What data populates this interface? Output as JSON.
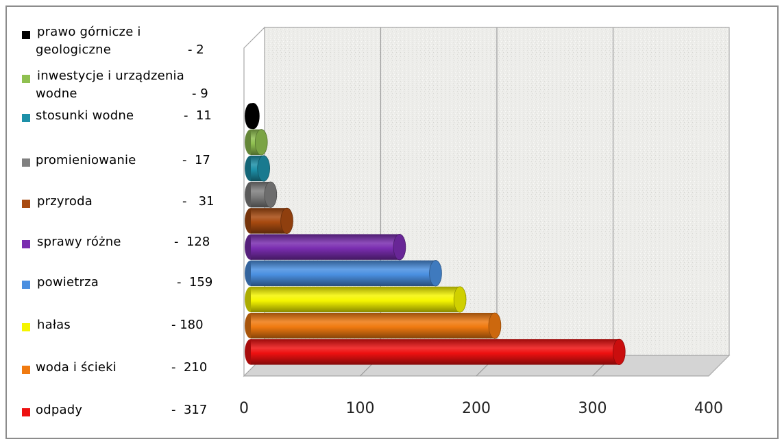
{
  "chart_data": {
    "type": "bar",
    "orientation": "horizontal",
    "style": "3d-cylinder",
    "categories": [
      "odpady",
      "woda i ścieki",
      "hałas",
      "powietrza",
      "sprawy różne",
      "przyroda",
      "promieniowanie",
      "stosunki wodne",
      "inwestycje i urządzenia wodne",
      "prawo górnicze i geologiczne"
    ],
    "values": [
      317,
      210,
      180,
      159,
      128,
      31,
      17,
      11,
      9,
      2
    ],
    "colors": [
      "#ee1111",
      "#f07a10",
      "#f5f500",
      "#4a8fe0",
      "#7a2db0",
      "#a84a10",
      "#808080",
      "#1d90a8",
      "#8fc050",
      "#000000"
    ],
    "xlim": [
      0,
      400
    ],
    "xticks": [
      "0",
      "100",
      "200",
      "300",
      "400"
    ],
    "grid": true,
    "legend_position": "left",
    "title": "",
    "xlabel": "",
    "ylabel": ""
  },
  "legend": [
    {
      "lines": [
        "prawo górnicze i",
        "geologiczne"
      ],
      "value": "- 2",
      "color": "#000000"
    },
    {
      "lines": [
        "inwestycje i urządzenia",
        "wodne"
      ],
      "value": "- 9",
      "color": "#8fc050"
    },
    {
      "lines": [
        "stosunki wodne"
      ],
      "value": "-  11",
      "color": "#1d90a8"
    },
    {
      "lines": [
        "promieniowanie"
      ],
      "value": "-  17",
      "color": "#808080"
    },
    {
      "lines": [
        "przyroda"
      ],
      "value": "-   31",
      "color": "#a84a10"
    },
    {
      "lines": [
        "sprawy różne"
      ],
      "value": "-  128",
      "color": "#7a2db0"
    },
    {
      "lines": [
        "powietrza"
      ],
      "value": "-  159",
      "color": "#4a8fe0"
    },
    {
      "lines": [
        "hałas"
      ],
      "value": "- 180",
      "color": "#f5f500"
    },
    {
      "lines": [
        "woda i ścieki"
      ],
      "value": "-  210",
      "color": "#f07a10"
    },
    {
      "lines": [
        "odpady"
      ],
      "value": "-  317",
      "color": "#ee1111"
    }
  ]
}
